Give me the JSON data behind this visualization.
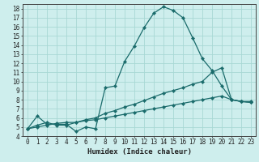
{
  "xlabel": "Humidex (Indice chaleur)",
  "ylabel": "",
  "bg_color": "#ceeeed",
  "grid_color": "#a8d8d4",
  "line_color": "#1a6b6b",
  "xlim": [
    -0.5,
    23.5
  ],
  "ylim": [
    4,
    18.5
  ],
  "xticks": [
    0,
    1,
    2,
    3,
    4,
    5,
    6,
    7,
    8,
    9,
    10,
    11,
    12,
    13,
    14,
    15,
    16,
    17,
    18,
    19,
    20,
    21,
    22,
    23
  ],
  "yticks": [
    4,
    5,
    6,
    7,
    8,
    9,
    10,
    11,
    12,
    13,
    14,
    15,
    16,
    17,
    18
  ],
  "line1_x": [
    0,
    1,
    2,
    3,
    4,
    5,
    6,
    7,
    8,
    9,
    10,
    11,
    12,
    13,
    14,
    15,
    16,
    17,
    18,
    19,
    20,
    21,
    22,
    23
  ],
  "line1_y": [
    4.8,
    6.2,
    5.3,
    5.3,
    5.3,
    4.5,
    5.0,
    4.8,
    9.3,
    9.5,
    12.2,
    13.9,
    15.9,
    17.5,
    18.2,
    17.8,
    17.0,
    14.8,
    12.5,
    11.2,
    9.5,
    8.0,
    7.8,
    7.8
  ],
  "line2_x": [
    0,
    1,
    2,
    3,
    4,
    5,
    6,
    7,
    8,
    9,
    10,
    11,
    12,
    13,
    14,
    15,
    16,
    17,
    18,
    19,
    20,
    21,
    22,
    23
  ],
  "line2_y": [
    4.8,
    5.2,
    5.5,
    5.2,
    5.2,
    5.5,
    5.8,
    6.0,
    6.5,
    6.8,
    7.2,
    7.5,
    7.9,
    8.3,
    8.7,
    9.0,
    9.3,
    9.7,
    10.0,
    11.0,
    11.5,
    8.0,
    7.8,
    7.7
  ],
  "line3_x": [
    0,
    1,
    2,
    3,
    4,
    5,
    6,
    7,
    8,
    9,
    10,
    11,
    12,
    13,
    14,
    15,
    16,
    17,
    18,
    19,
    20,
    21,
    22,
    23
  ],
  "line3_y": [
    4.8,
    5.0,
    5.2,
    5.4,
    5.5,
    5.5,
    5.7,
    5.8,
    6.0,
    6.2,
    6.4,
    6.6,
    6.8,
    7.0,
    7.2,
    7.4,
    7.6,
    7.8,
    8.0,
    8.2,
    8.4,
    8.0,
    7.8,
    7.7
  ],
  "tick_fontsize": 5.5,
  "xlabel_fontsize": 6.5
}
